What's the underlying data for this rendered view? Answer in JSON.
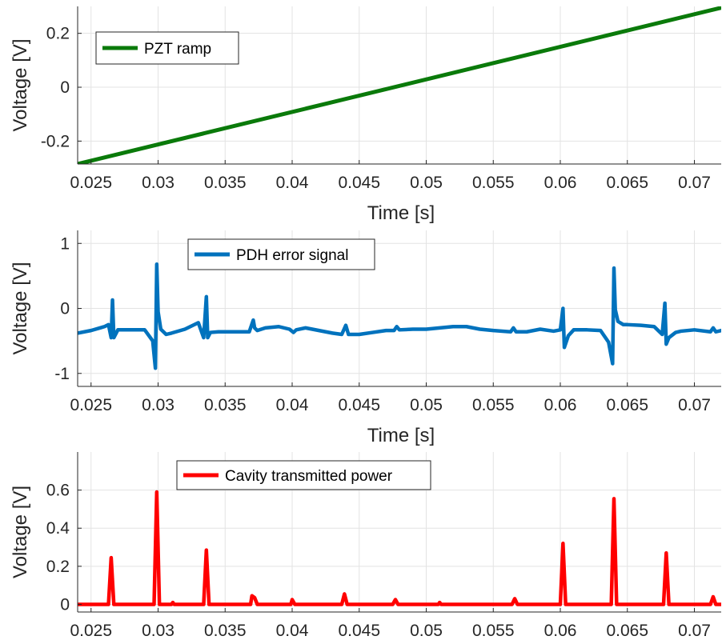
{
  "chart_data": [
    {
      "type": "line",
      "xlabel": "Time [s]",
      "ylabel": "Voltage [V]",
      "xlim": [
        0.024,
        0.072
      ],
      "ylim": [
        -0.285,
        0.3
      ],
      "xticks": [
        "0.025",
        "0.03",
        "0.035",
        "0.04",
        "0.045",
        "0.05",
        "0.055",
        "0.06",
        "0.065",
        "0.07"
      ],
      "xtick_values": [
        0.025,
        0.03,
        0.035,
        0.04,
        0.045,
        0.05,
        0.055,
        0.06,
        0.065,
        0.07
      ],
      "yticks": [
        "-0.2",
        "0",
        "0.2"
      ],
      "ytick_values": [
        -0.2,
        0,
        0.2
      ],
      "grid": true,
      "legend_position": "top-left",
      "series": [
        {
          "name": "PZT ramp",
          "color": "#0a7a0a",
          "x": [
            0.024,
            0.072
          ],
          "y": [
            -0.285,
            0.295
          ]
        }
      ]
    },
    {
      "type": "line",
      "xlabel": "Time [s]",
      "ylabel": "Voltage [V]",
      "xlim": [
        0.024,
        0.072
      ],
      "ylim": [
        -1.2,
        1.2
      ],
      "xticks": [
        "0.025",
        "0.03",
        "0.035",
        "0.04",
        "0.045",
        "0.05",
        "0.055",
        "0.06",
        "0.065",
        "0.07"
      ],
      "xtick_values": [
        0.025,
        0.03,
        0.035,
        0.04,
        0.045,
        0.05,
        0.055,
        0.06,
        0.065,
        0.07
      ],
      "yticks": [
        "-1",
        "0",
        "1"
      ],
      "ytick_values": [
        -1,
        0,
        1
      ],
      "grid": true,
      "legend_position": "top-center",
      "series": [
        {
          "name": "PDH error signal",
          "color": "#0072bd",
          "x": [
            0.024,
            0.025,
            0.026,
            0.0263,
            0.0265,
            0.0266,
            0.0267,
            0.027,
            0.028,
            0.029,
            0.0296,
            0.0298,
            0.0299,
            0.03,
            0.0302,
            0.0306,
            0.031,
            0.032,
            0.033,
            0.0334,
            0.0336,
            0.0337,
            0.0339,
            0.0345,
            0.035,
            0.036,
            0.0368,
            0.0371,
            0.0372,
            0.0374,
            0.038,
            0.039,
            0.0398,
            0.0401,
            0.0403,
            0.041,
            0.042,
            0.043,
            0.0437,
            0.044,
            0.0442,
            0.045,
            0.046,
            0.047,
            0.0476,
            0.0478,
            0.048,
            0.049,
            0.05,
            0.051,
            0.052,
            0.053,
            0.054,
            0.055,
            0.0563,
            0.0565,
            0.0567,
            0.0575,
            0.0585,
            0.0595,
            0.06,
            0.0602,
            0.0603,
            0.0606,
            0.061,
            0.062,
            0.063,
            0.0636,
            0.0639,
            0.064,
            0.0641,
            0.0643,
            0.0647,
            0.065,
            0.066,
            0.067,
            0.0676,
            0.0678,
            0.0679,
            0.0681,
            0.0686,
            0.069,
            0.07,
            0.0712,
            0.0714,
            0.0716,
            0.072
          ],
          "y": [
            -0.38,
            -0.34,
            -0.28,
            -0.25,
            -0.45,
            0.13,
            -0.45,
            -0.33,
            -0.33,
            -0.33,
            -0.5,
            -0.92,
            0.68,
            -0.05,
            -0.32,
            -0.4,
            -0.38,
            -0.32,
            -0.22,
            -0.45,
            0.18,
            -0.45,
            -0.37,
            -0.36,
            -0.36,
            -0.36,
            -0.36,
            -0.18,
            -0.3,
            -0.34,
            -0.3,
            -0.28,
            -0.32,
            -0.37,
            -0.33,
            -0.3,
            -0.34,
            -0.38,
            -0.4,
            -0.26,
            -0.4,
            -0.4,
            -0.37,
            -0.34,
            -0.34,
            -0.28,
            -0.33,
            -0.32,
            -0.32,
            -0.3,
            -0.28,
            -0.28,
            -0.32,
            -0.34,
            -0.36,
            -0.3,
            -0.36,
            -0.36,
            -0.32,
            -0.35,
            -0.33,
            0.0,
            -0.6,
            -0.42,
            -0.33,
            -0.33,
            -0.34,
            -0.52,
            -0.85,
            0.62,
            -0.02,
            -0.2,
            -0.25,
            -0.25,
            -0.26,
            -0.28,
            -0.4,
            0.08,
            -0.55,
            -0.45,
            -0.37,
            -0.35,
            -0.33,
            -0.36,
            -0.3,
            -0.36,
            -0.34
          ]
        }
      ]
    },
    {
      "type": "line",
      "xlabel": "",
      "ylabel": "Voltage [V]",
      "xlim": [
        0.024,
        0.072
      ],
      "ylim": [
        -0.04,
        0.8
      ],
      "xticks": [
        "0.025",
        "0.03",
        "0.035",
        "0.04",
        "0.045",
        "0.05",
        "0.055",
        "0.06",
        "0.065",
        "0.07"
      ],
      "xtick_values": [
        0.025,
        0.03,
        0.035,
        0.04,
        0.045,
        0.05,
        0.055,
        0.06,
        0.065,
        0.07
      ],
      "yticks": [
        "0",
        "0.2",
        "0.4",
        "0.6"
      ],
      "ytick_values": [
        0,
        0.2,
        0.4,
        0.6
      ],
      "grid": true,
      "legend_position": "top-center",
      "series": [
        {
          "name": "Cavity transmitted power",
          "color": "#ff0000",
          "x": [
            0.024,
            0.0263,
            0.0265,
            0.0267,
            0.0297,
            0.0299,
            0.0301,
            0.031,
            0.0311,
            0.0312,
            0.0334,
            0.0336,
            0.0338,
            0.0369,
            0.037,
            0.0372,
            0.0374,
            0.0399,
            0.04,
            0.0402,
            0.0437,
            0.0439,
            0.0441,
            0.0475,
            0.0477,
            0.0479,
            0.0509,
            0.051,
            0.0511,
            0.0564,
            0.0566,
            0.0568,
            0.06,
            0.0602,
            0.0604,
            0.0638,
            0.064,
            0.0642,
            0.0677,
            0.0679,
            0.0681,
            0.0712,
            0.0714,
            0.0716,
            0.072
          ],
          "y": [
            0.0,
            0.0,
            0.245,
            0.0,
            0.0,
            0.59,
            0.0,
            0.0,
            0.01,
            0.0,
            0.0,
            0.285,
            0.0,
            0.0,
            0.045,
            0.035,
            0.0,
            0.0,
            0.025,
            0.0,
            0.0,
            0.055,
            0.0,
            0.0,
            0.025,
            0.0,
            0.0,
            0.01,
            0.0,
            0.0,
            0.03,
            0.0,
            0.0,
            0.32,
            0.0,
            0.0,
            0.555,
            0.0,
            0.0,
            0.27,
            0.0,
            0.0,
            0.04,
            0.0,
            0.0
          ]
        }
      ]
    }
  ]
}
